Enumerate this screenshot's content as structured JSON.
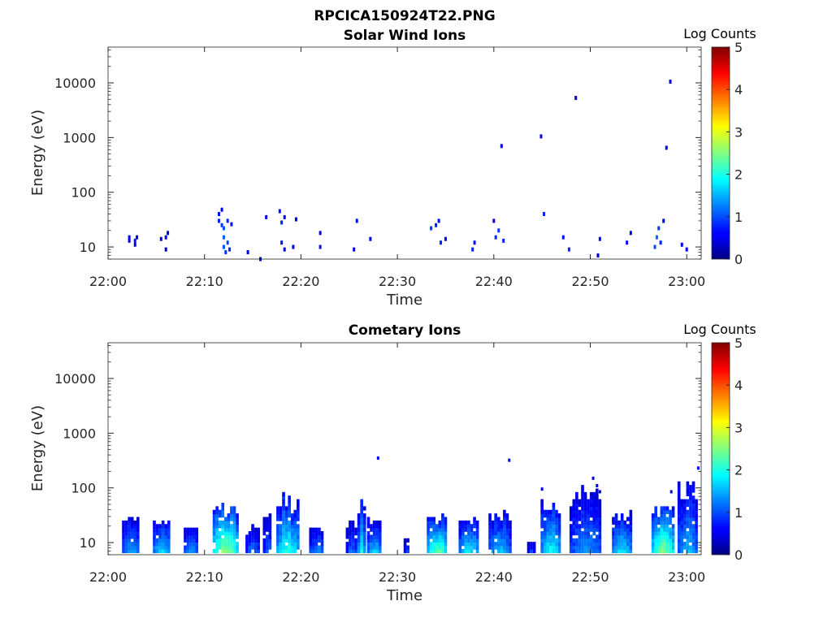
{
  "figure_title": "RPCICA150924T22.PNG",
  "chart_data": [
    {
      "type": "heatmap",
      "title": "Solar Wind Ions",
      "xlabel": "Time",
      "ylabel": "Energy (eV)",
      "x_ticks": [
        "22:00",
        "22:10",
        "22:20",
        "22:30",
        "22:40",
        "22:50",
        "23:00"
      ],
      "y_ticks": [
        "10",
        "100",
        "1000",
        "10000"
      ],
      "y_scale": "log",
      "ylim": [
        6,
        45000
      ],
      "xlim_minutes": [
        0,
        61.5
      ],
      "colorbar": {
        "label": "Log Counts",
        "ticks": [
          "0",
          "1",
          "2",
          "3",
          "4",
          "5"
        ],
        "range": [
          0,
          5
        ],
        "colormap": "jet"
      },
      "cells": [
        [
          2.2,
          13,
          0.5
        ],
        [
          2.2,
          15,
          0.6
        ],
        [
          2.8,
          11,
          0.5
        ],
        [
          2.8,
          13,
          0.7
        ],
        [
          3.0,
          15,
          0.5
        ],
        [
          5.5,
          14,
          0.5
        ],
        [
          6.0,
          9,
          0.4
        ],
        [
          6.0,
          15,
          0.6
        ],
        [
          6.2,
          18,
          0.5
        ],
        [
          11.5,
          30,
          0.8
        ],
        [
          11.5,
          40,
          0.7
        ],
        [
          11.8,
          25,
          0.9
        ],
        [
          11.8,
          48,
          0.6
        ],
        [
          12.0,
          10,
          1.0
        ],
        [
          12.0,
          15,
          1.1
        ],
        [
          12.0,
          22,
          1.0
        ],
        [
          12.2,
          8,
          0.9
        ],
        [
          12.4,
          12,
          1.0
        ],
        [
          12.4,
          30,
          0.8
        ],
        [
          12.6,
          9,
          0.8
        ],
        [
          12.8,
          26,
          0.7
        ],
        [
          14.5,
          8,
          0.5
        ],
        [
          15.8,
          6,
          0.4
        ],
        [
          16.4,
          35,
          0.5
        ],
        [
          17.8,
          45,
          0.7
        ],
        [
          18.0,
          28,
          0.8
        ],
        [
          18.0,
          12,
          0.7
        ],
        [
          18.3,
          35,
          0.6
        ],
        [
          18.3,
          9,
          0.6
        ],
        [
          19.2,
          10,
          0.5
        ],
        [
          19.5,
          32,
          0.5
        ],
        [
          22.0,
          10,
          0.7
        ],
        [
          22.0,
          18,
          0.6
        ],
        [
          25.5,
          9,
          0.5
        ],
        [
          25.8,
          30,
          0.7
        ],
        [
          27.2,
          14,
          0.5
        ],
        [
          33.5,
          22,
          0.9
        ],
        [
          34.0,
          25,
          0.8
        ],
        [
          34.3,
          30,
          0.7
        ],
        [
          34.5,
          12,
          0.8
        ],
        [
          35.0,
          14,
          0.6
        ],
        [
          37.8,
          9,
          0.8
        ],
        [
          38.0,
          12,
          0.7
        ],
        [
          40.0,
          30,
          0.5
        ],
        [
          40.2,
          15,
          0.8
        ],
        [
          40.5,
          20,
          0.9
        ],
        [
          41.0,
          13,
          0.8
        ],
        [
          40.8,
          700,
          0.5
        ],
        [
          44.9,
          1050,
          0.5
        ],
        [
          45.2,
          40,
          0.8
        ],
        [
          47.2,
          15,
          0.7
        ],
        [
          47.8,
          9,
          0.8
        ],
        [
          48.5,
          5300,
          0.5
        ],
        [
          51.0,
          14,
          0.6
        ],
        [
          50.8,
          7,
          0.5
        ],
        [
          53.8,
          12,
          0.7
        ],
        [
          54.2,
          18,
          0.6
        ],
        [
          56.7,
          10,
          1.0
        ],
        [
          56.9,
          15,
          1.1
        ],
        [
          57.1,
          22,
          0.9
        ],
        [
          57.3,
          12,
          0.8
        ],
        [
          57.6,
          30,
          0.6
        ],
        [
          57.9,
          650,
          0.5
        ],
        [
          58.3,
          10500,
          0.5
        ],
        [
          59.5,
          11,
          0.6
        ],
        [
          60.0,
          9,
          0.6
        ]
      ]
    },
    {
      "type": "heatmap",
      "title": "Cometary Ions",
      "xlabel": "Time",
      "ylabel": "Energy (eV)",
      "x_ticks": [
        "22:00",
        "22:10",
        "22:20",
        "22:30",
        "22:40",
        "22:50",
        "23:00"
      ],
      "y_ticks": [
        "10",
        "100",
        "1000",
        "10000"
      ],
      "y_scale": "log",
      "ylim": [
        6,
        45000
      ],
      "xlim_minutes": [
        0,
        61.5
      ],
      "colorbar": {
        "label": "Log Counts",
        "ticks": [
          "0",
          "1",
          "2",
          "3",
          "4",
          "5"
        ],
        "range": [
          0,
          5
        ],
        "colormap": "jet"
      },
      "bursts": [
        {
          "start": 1.6,
          "end": 3.2,
          "top": 30,
          "peak": 1.4
        },
        {
          "start": 4.8,
          "end": 6.4,
          "top": 30,
          "peak": 1.7
        },
        {
          "start": 8.0,
          "end": 9.4,
          "top": 20,
          "peak": 1.3
        },
        {
          "start": 11.0,
          "end": 13.4,
          "top": 60,
          "peak": 2.6
        },
        {
          "start": 14.4,
          "end": 15.6,
          "top": 20,
          "peak": 1.2
        },
        {
          "start": 16.2,
          "end": 17.0,
          "top": 35,
          "peak": 1.1
        },
        {
          "start": 17.6,
          "end": 19.8,
          "top": 80,
          "peak": 2.0
        },
        {
          "start": 21.0,
          "end": 22.4,
          "top": 20,
          "peak": 1.3
        },
        {
          "start": 24.8,
          "end": 25.8,
          "top": 25,
          "peak": 1.1
        },
        {
          "start": 26.0,
          "end": 26.6,
          "top": 60,
          "peak": 1.9
        },
        {
          "start": 27.0,
          "end": 28.3,
          "top": 30,
          "peak": 1.6
        },
        {
          "start": 30.8,
          "end": 31.3,
          "top": 12,
          "peak": 1.0
        },
        {
          "start": 33.2,
          "end": 35.2,
          "top": 35,
          "peak": 2.3
        },
        {
          "start": 36.5,
          "end": 38.4,
          "top": 35,
          "peak": 1.8
        },
        {
          "start": 39.6,
          "end": 41.7,
          "top": 40,
          "peak": 1.6
        },
        {
          "start": 43.6,
          "end": 44.2,
          "top": 10,
          "peak": 0.9
        },
        {
          "start": 45.0,
          "end": 47.0,
          "top": 60,
          "peak": 1.9
        },
        {
          "start": 48.0,
          "end": 51.2,
          "top": 110,
          "peak": 1.3
        },
        {
          "start": 52.4,
          "end": 54.2,
          "top": 40,
          "peak": 1.8
        },
        {
          "start": 56.5,
          "end": 58.6,
          "top": 50,
          "peak": 2.5
        },
        {
          "start": 59.2,
          "end": 61.0,
          "top": 200,
          "peak": 1.5
        }
      ],
      "points": [
        [
          28.0,
          350,
          0.5
        ],
        [
          41.6,
          320,
          0.5
        ],
        [
          45.0,
          95,
          0.5
        ],
        [
          50.3,
          150,
          0.5
        ],
        [
          50.7,
          110,
          0.6
        ],
        [
          51.0,
          85,
          0.5
        ],
        [
          58.4,
          85,
          0.5
        ],
        [
          61.2,
          230,
          0.5
        ]
      ]
    }
  ]
}
